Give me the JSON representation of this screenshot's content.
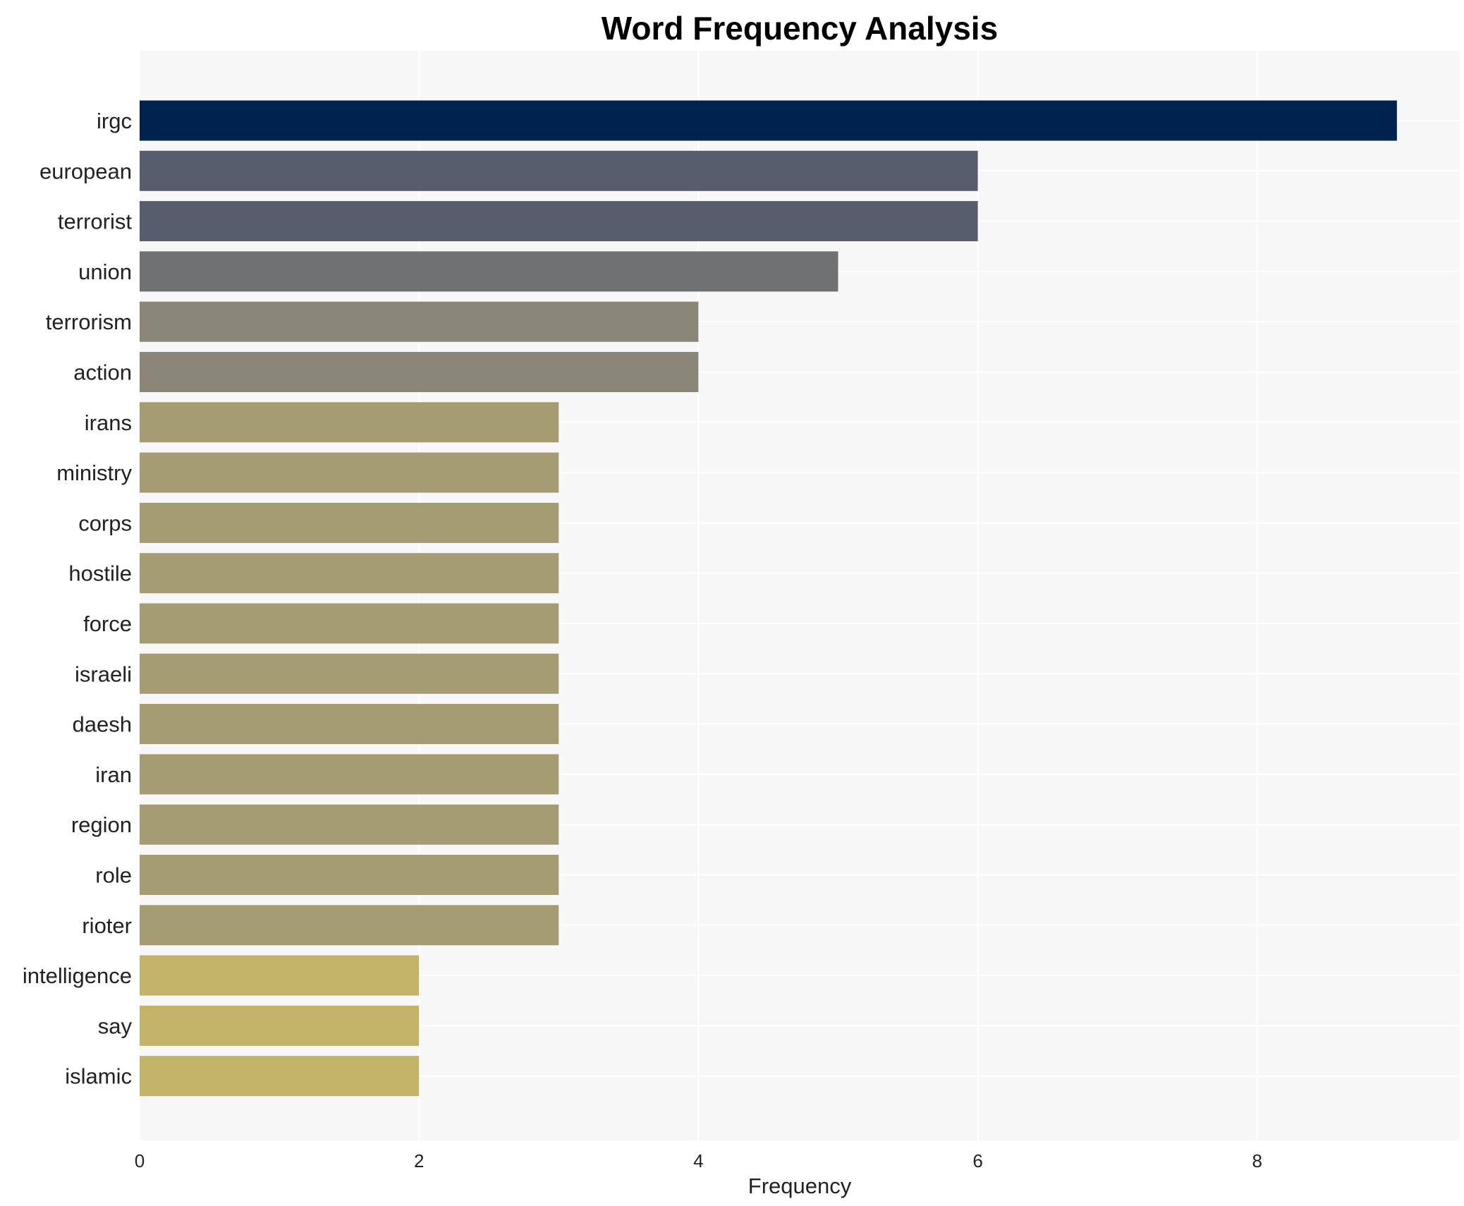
{
  "chart_data": {
    "type": "bar",
    "orientation": "horizontal",
    "title": "Word Frequency Analysis",
    "xlabel": "Frequency",
    "ylabel": "",
    "xlim": [
      0,
      9.45
    ],
    "xticks": [
      0,
      2,
      4,
      6,
      8
    ],
    "grid": true,
    "categories": [
      "irgc",
      "european",
      "terrorist",
      "union",
      "terrorism",
      "action",
      "irans",
      "ministry",
      "corps",
      "hostile",
      "force",
      "israeli",
      "daesh",
      "iran",
      "region",
      "role",
      "rioter",
      "intelligence",
      "say",
      "islamic"
    ],
    "values": [
      9,
      6,
      6,
      5,
      4,
      4,
      3,
      3,
      3,
      3,
      3,
      3,
      3,
      3,
      3,
      3,
      3,
      2,
      2,
      2
    ],
    "colors": [
      "#00224e",
      "#575d6d",
      "#575d6d",
      "#707173",
      "#8a8779",
      "#8a8779",
      "#a59c74",
      "#a59c74",
      "#a59c74",
      "#a59c74",
      "#a59c74",
      "#a59c74",
      "#a59c74",
      "#a59c74",
      "#a59c74",
      "#a59c74",
      "#a59c74",
      "#c3b369",
      "#c3b369",
      "#c3b369"
    ],
    "plot_background": "#f7f7f7",
    "grid_color": "#ffffff"
  }
}
